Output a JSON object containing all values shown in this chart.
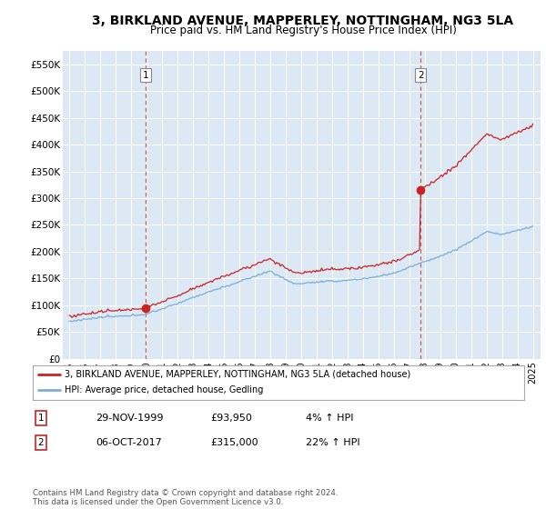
{
  "title": "3, BIRKLAND AVENUE, MAPPERLEY, NOTTINGHAM, NG3 5LA",
  "subtitle": "Price paid vs. HM Land Registry's House Price Index (HPI)",
  "title_fontsize": 10,
  "subtitle_fontsize": 8.5,
  "background_color": "#ffffff",
  "plot_bg_color": "#dce9f5",
  "grid_color": "#ffffff",
  "hpi_color": "#7aaed6",
  "price_color": "#cc2222",
  "ylim": [
    0,
    575000
  ],
  "yticks": [
    0,
    50000,
    100000,
    150000,
    200000,
    250000,
    300000,
    350000,
    400000,
    450000,
    500000,
    550000
  ],
  "sale1_year": 1999.92,
  "sale1_price": 93950,
  "sale2_year": 2017.75,
  "sale2_price": 315000,
  "legend_line1": "3, BIRKLAND AVENUE, MAPPERLEY, NOTTINGHAM, NG3 5LA (detached house)",
  "legend_line2": "HPI: Average price, detached house, Gedling",
  "footnote": "Contains HM Land Registry data © Crown copyright and database right 2024.\nThis data is licensed under the Open Government Licence v3.0.",
  "table_row1_label": "1",
  "table_row1_date": "29-NOV-1999",
  "table_row1_price": "£93,950",
  "table_row1_pct": "4% ↑ HPI",
  "table_row2_label": "2",
  "table_row2_date": "06-OCT-2017",
  "table_row2_price": "£315,000",
  "table_row2_pct": "22% ↑ HPI"
}
